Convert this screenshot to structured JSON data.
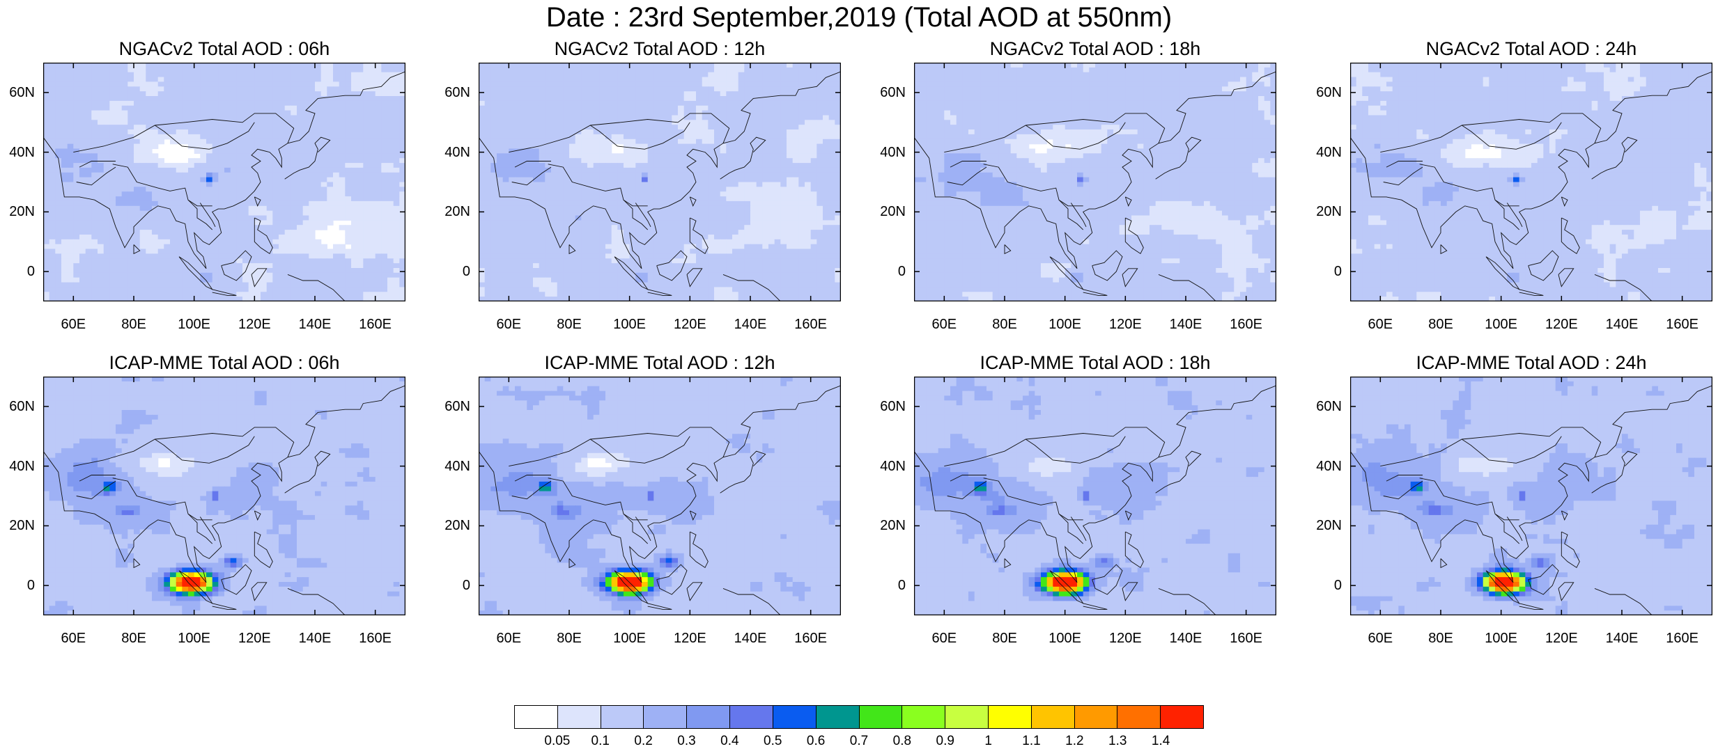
{
  "title": "Date : 23rd September,2019 (Total AOD at 550nm)",
  "panels": [
    {
      "title": "NGACv2 Total AOD : 06h",
      "model": "NGACv2",
      "hour": "06h"
    },
    {
      "title": "NGACv2 Total AOD : 12h",
      "model": "NGACv2",
      "hour": "12h"
    },
    {
      "title": "NGACv2 Total AOD : 18h",
      "model": "NGACv2",
      "hour": "18h"
    },
    {
      "title": "NGACv2 Total AOD : 24h",
      "model": "NGACv2",
      "hour": "24h"
    },
    {
      "title": "ICAP-MME Total AOD : 06h",
      "model": "ICAP-MME",
      "hour": "06h"
    },
    {
      "title": "ICAP-MME Total AOD : 12h",
      "model": "ICAP-MME",
      "hour": "12h"
    },
    {
      "title": "ICAP-MME Total AOD : 18h",
      "model": "ICAP-MME",
      "hour": "18h"
    },
    {
      "title": "ICAP-MME Total AOD : 24h",
      "model": "ICAP-MME",
      "hour": "24h"
    }
  ],
  "lat_ticks": [
    "60N",
    "40N",
    "20N",
    "0"
  ],
  "lon_ticks": [
    "60E",
    "80E",
    "100E",
    "120E",
    "140E",
    "160E"
  ],
  "colorbar": {
    "labels": [
      "0.05",
      "0.1",
      "0.2",
      "0.3",
      "0.4",
      "0.5",
      "0.6",
      "0.7",
      "0.8",
      "0.9",
      "1",
      "1.1",
      "1.2",
      "1.3",
      "1.4"
    ],
    "colors": [
      "#ffffff",
      "#dde4fc",
      "#bcc9f8",
      "#9eb1f5",
      "#8099f1",
      "#6577ed",
      "#0a5cf0",
      "#00968f",
      "#42e619",
      "#8aff1f",
      "#c8ff40",
      "#ffff00",
      "#ffc400",
      "#ff9a00",
      "#ff7000",
      "#ff2200"
    ]
  }
}
